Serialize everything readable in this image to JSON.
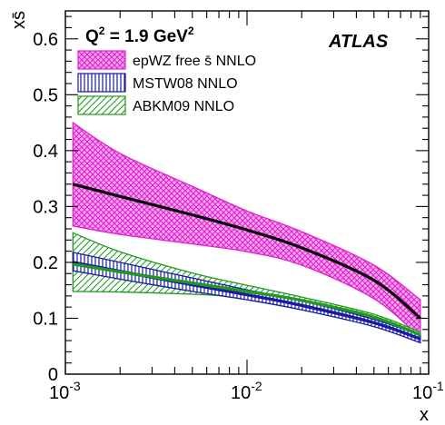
{
  "chart_data": {
    "type": "area",
    "title": "",
    "xlabel": "x",
    "ylabel": "xs̄",
    "x_scale": "log",
    "xlim": [
      0.001,
      0.1
    ],
    "ylim": [
      0,
      0.65
    ],
    "grid": false,
    "legend_position": "top-left",
    "annotations": {
      "q2_prefix": "Q",
      "q2_power": "2",
      "q2_value": " =   1.9 GeV",
      "q2_unit_power": "2",
      "experiment": "ATLAS"
    },
    "x_ticks": [
      {
        "value": 0.001,
        "base": "10",
        "exp": "-3"
      },
      {
        "value": 0.01,
        "base": "10",
        "exp": "-2"
      },
      {
        "value": 0.1,
        "base": "10",
        "exp": "-1"
      }
    ],
    "y_ticks": [
      {
        "value": 0,
        "label": "0"
      },
      {
        "value": 0.1,
        "label": "0.1"
      },
      {
        "value": 0.2,
        "label": "0.2"
      },
      {
        "value": 0.3,
        "label": "0.3"
      },
      {
        "value": 0.4,
        "label": "0.4"
      },
      {
        "value": 0.5,
        "label": "0.5"
      },
      {
        "value": 0.6,
        "label": "0.6"
      }
    ],
    "series": [
      {
        "name": "epWZ free s̄ NNLO",
        "color": "#e020d0",
        "x": [
          0.0011,
          0.002,
          0.005,
          0.01,
          0.02,
          0.05,
          0.09
        ],
        "central": [
          0.34,
          0.318,
          0.285,
          0.258,
          0.226,
          0.168,
          0.1
        ],
        "upper": [
          0.45,
          0.395,
          0.336,
          0.292,
          0.255,
          0.195,
          0.133
        ],
        "lower": [
          0.265,
          0.25,
          0.233,
          0.219,
          0.195,
          0.135,
          0.065
        ]
      },
      {
        "name": "MSTW08 NNLO",
        "color": "#1a1aa0",
        "x": [
          0.0011,
          0.002,
          0.005,
          0.01,
          0.02,
          0.05,
          0.09
        ],
        "central": [
          0.2,
          0.184,
          0.16,
          0.142,
          0.123,
          0.092,
          0.063
        ],
        "upper": [
          0.218,
          0.2,
          0.172,
          0.151,
          0.131,
          0.098,
          0.07
        ],
        "lower": [
          0.185,
          0.17,
          0.148,
          0.133,
          0.115,
          0.085,
          0.056
        ]
      },
      {
        "name": "ABKM09 NNLO",
        "color": "#1e9a1e",
        "x": [
          0.0011,
          0.002,
          0.005,
          0.01,
          0.02,
          0.05,
          0.09
        ],
        "central": [
          0.197,
          0.183,
          0.163,
          0.148,
          0.132,
          0.102,
          0.07
        ],
        "upper": [
          0.253,
          0.219,
          0.181,
          0.159,
          0.138,
          0.107,
          0.075
        ],
        "lower": [
          0.148,
          0.147,
          0.143,
          0.137,
          0.126,
          0.097,
          0.066
        ]
      }
    ]
  }
}
